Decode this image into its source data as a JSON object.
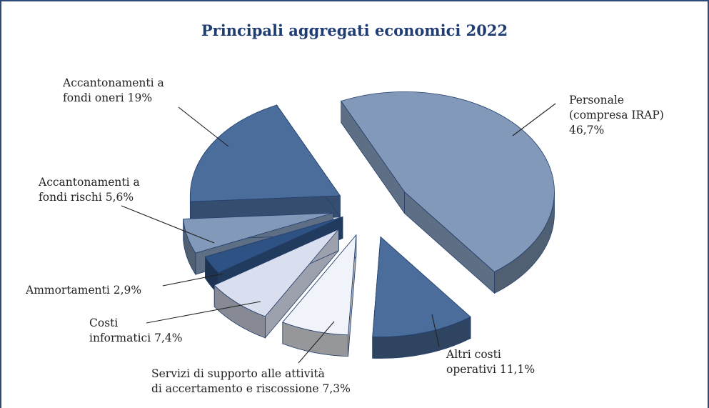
{
  "chart_data": {
    "type": "pie",
    "title": "Principali aggregati economici 2022",
    "slices": [
      {
        "label_lines": [
          "Personale",
          "(compresa IRAP)",
          "46,7%"
        ],
        "value": 46.7,
        "color": "#8299b9"
      },
      {
        "label_lines": [
          "Altri costi",
          "operativi 11,1%"
        ],
        "value": 11.1,
        "color": "#4a6d9c"
      },
      {
        "label_lines": [
          "Servizi di supporto alle attività",
          "di accertamento e riscossione 7,3%"
        ],
        "value": 7.3,
        "color": "#f0f3fa"
      },
      {
        "label_lines": [
          "Costi",
          "informatici 7,4%"
        ],
        "value": 7.4,
        "color": "#dadff0"
      },
      {
        "label_lines": [
          "Ammortamenti 2,9%"
        ],
        "value": 2.9,
        "color": "#2e5283"
      },
      {
        "label_lines": [
          "Accantonamenti a",
          "fondi rischi 5,6%"
        ],
        "value": 5.6,
        "color": "#8299b9"
      },
      {
        "label_lines": [
          "Accantonamenti a",
          "fondi oneri 19%"
        ],
        "value": 19,
        "color": "#4a6d9c"
      }
    ],
    "legend": "none"
  }
}
